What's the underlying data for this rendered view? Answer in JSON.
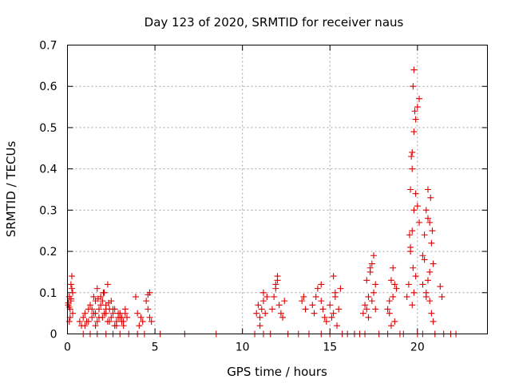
{
  "chart_data": {
    "type": "scatter",
    "title": "Day 123 of 2020, SRMTID for receiver naus",
    "xlabel": "GPS time / hours",
    "ylabel": "SRMTID / TECUs",
    "xlim": [
      0,
      24
    ],
    "ylim": [
      0,
      0.7
    ],
    "xticks": [
      0,
      5,
      10,
      15,
      20
    ],
    "xtick_labels": [
      "0",
      "5",
      "10",
      "15",
      "20"
    ],
    "yticks": [
      0,
      0.1,
      0.2,
      0.3,
      0.4,
      0.5,
      0.6,
      0.7
    ],
    "ytick_labels": [
      "0",
      "0.1",
      "0.2",
      "0.3",
      "0.4",
      "0.5",
      "0.6",
      "0.7"
    ],
    "grid": true,
    "marker": "plus",
    "color": "#e00000",
    "series": [
      {
        "name": "SRMTID",
        "x": [
          0.05,
          0.1,
          0.15,
          0.2,
          0.25,
          0.3,
          0.1,
          0.2,
          0.25,
          0.15,
          0.3,
          0.05,
          0.1,
          0.2,
          0.7,
          0.8,
          0.9,
          1.0,
          1.1,
          1.2,
          1.3,
          1.4,
          1.5,
          1.6,
          1.7,
          1.8,
          1.9,
          2.0,
          2.1,
          2.2,
          2.3,
          2.4,
          2.5,
          2.6,
          2.7,
          2.8,
          2.9,
          3.0,
          3.1,
          3.2,
          3.3,
          3.4,
          1.0,
          1.2,
          1.4,
          1.6,
          1.8,
          2.0,
          2.2,
          2.4,
          2.6,
          2.8,
          3.0,
          3.2,
          1.5,
          1.7,
          1.9,
          2.1,
          2.3,
          2.5,
          2.7,
          2.9,
          3.1,
          3.3,
          1.6,
          1.75,
          2.05,
          2.2,
          2.35,
          3.9,
          4.0,
          4.1,
          4.2,
          4.3,
          4.5,
          4.6,
          4.7,
          4.8,
          4.6,
          4.7,
          10.8,
          10.9,
          11.0,
          11.1,
          11.2,
          11.3,
          11.4,
          11.0,
          11.2,
          11.7,
          11.8,
          11.9,
          12.0,
          12.1,
          12.2,
          12.3,
          12.4,
          11.9,
          12.0,
          13.4,
          13.5,
          13.6,
          14.0,
          14.1,
          14.2,
          14.3,
          14.5,
          14.6,
          14.7,
          14.8,
          14.5,
          15.0,
          15.1,
          15.2,
          15.3,
          15.4,
          15.5,
          15.6,
          15.2,
          15.3,
          16.9,
          17.0,
          17.1,
          17.2,
          17.3,
          17.4,
          17.5,
          17.6,
          17.1,
          17.3,
          17.5,
          17.4,
          17.2,
          17.6,
          18.3,
          18.4,
          18.5,
          18.6,
          18.7,
          18.8,
          18.5,
          18.6,
          18.7,
          18.4,
          19.4,
          19.5,
          19.6,
          19.7,
          19.8,
          19.6,
          19.7,
          19.8,
          19.9,
          20.0,
          20.1,
          19.75,
          19.8,
          19.85,
          19.7,
          19.65,
          19.9,
          20.0,
          20.1,
          19.6,
          19.75,
          19.8,
          19.7,
          19.9,
          19.55,
          20.3,
          20.4,
          20.5,
          20.6,
          20.7,
          20.8,
          20.9,
          20.5,
          20.6,
          20.7,
          20.8,
          20.9,
          20.6,
          20.75,
          20.85,
          20.7,
          20.5,
          20.4,
          20.3,
          21.3,
          21.4,
          0.9,
          1.3,
          1.7,
          2.2,
          2.6,
          3.0,
          3.5,
          4.0,
          4.4,
          5.3,
          6.7,
          8.5,
          10.7,
          11.2,
          11.6,
          12.6,
          13.2,
          13.8,
          14.5,
          15.0,
          15.7,
          16.0,
          16.4,
          16.7,
          17.0,
          17.8,
          18.3,
          19.0,
          19.2,
          20.0,
          20.3,
          21.0,
          21.5,
          21.9,
          22.2
        ],
        "y": [
          0.07,
          0.09,
          0.06,
          0.12,
          0.14,
          0.05,
          0.03,
          0.08,
          0.11,
          0.04,
          0.1,
          0.075,
          0.065,
          0.085,
          0.03,
          0.02,
          0.04,
          0.05,
          0.03,
          0.06,
          0.07,
          0.04,
          0.05,
          0.08,
          0.03,
          0.06,
          0.09,
          0.04,
          0.05,
          0.07,
          0.03,
          0.06,
          0.04,
          0.05,
          0.02,
          0.03,
          0.04,
          0.05,
          0.03,
          0.02,
          0.06,
          0.04,
          0.02,
          0.03,
          0.06,
          0.05,
          0.04,
          0.08,
          0.05,
          0.03,
          0.06,
          0.02,
          0.04,
          0.03,
          0.09,
          0.11,
          0.07,
          0.1,
          0.12,
          0.08,
          0.06,
          0.05,
          0.04,
          0.05,
          0.02,
          0.085,
          0.1,
          0.06,
          0.075,
          0.09,
          0.05,
          0.02,
          0.04,
          0.03,
          0.08,
          0.06,
          0.04,
          0.03,
          0.095,
          0.1,
          0.05,
          0.07,
          0.04,
          0.06,
          0.08,
          0.05,
          0.09,
          0.02,
          0.1,
          0.06,
          0.09,
          0.11,
          0.13,
          0.07,
          0.05,
          0.04,
          0.08,
          0.12,
          0.14,
          0.08,
          0.09,
          0.06,
          0.07,
          0.05,
          0.09,
          0.11,
          0.08,
          0.06,
          0.04,
          0.03,
          0.12,
          0.07,
          0.04,
          0.05,
          0.09,
          0.02,
          0.06,
          0.11,
          0.14,
          0.1,
          0.05,
          0.07,
          0.06,
          0.09,
          0.15,
          0.17,
          0.19,
          0.12,
          0.13,
          0.16,
          0.1,
          0.08,
          0.04,
          0.06,
          0.06,
          0.08,
          0.13,
          0.16,
          0.03,
          0.11,
          0.02,
          0.09,
          0.12,
          0.05,
          0.09,
          0.12,
          0.2,
          0.25,
          0.3,
          0.35,
          0.44,
          0.49,
          0.52,
          0.55,
          0.57,
          0.6,
          0.64,
          0.54,
          0.4,
          0.43,
          0.34,
          0.31,
          0.27,
          0.21,
          0.16,
          0.1,
          0.07,
          0.14,
          0.24,
          0.19,
          0.24,
          0.3,
          0.35,
          0.27,
          0.22,
          0.17,
          0.1,
          0.13,
          0.08,
          0.05,
          0.03,
          0.28,
          0.33,
          0.25,
          0.15,
          0.09,
          0.18,
          0.12,
          0.115,
          0.09,
          0,
          0,
          0,
          0,
          0,
          0,
          0,
          0,
          0,
          0,
          0,
          0,
          0,
          0,
          0,
          0,
          0,
          0,
          0,
          0,
          0,
          0,
          0,
          0,
          0,
          0,
          0,
          0,
          0,
          0,
          0,
          0,
          0,
          0,
          0
        ]
      }
    ]
  }
}
